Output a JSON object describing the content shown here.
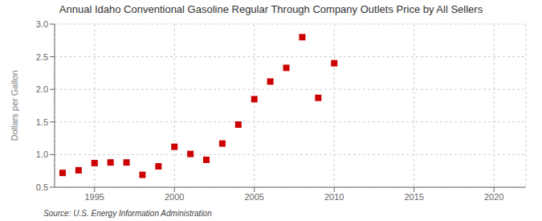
{
  "chart_data": {
    "type": "scatter",
    "title": "Annual Idaho Conventional Gasoline Regular Through Company Outlets Price by All Sellers",
    "ylabel": "Dollars per Gallon",
    "annotations": [
      "Source: U.S. Energy Information Administration"
    ],
    "x": [
      1993,
      1994,
      1995,
      1996,
      1997,
      1998,
      1999,
      2000,
      2001,
      2002,
      2003,
      2004,
      2005,
      2006,
      2007,
      2008,
      2009,
      2010
    ],
    "values": [
      0.72,
      0.76,
      0.87,
      0.88,
      0.88,
      0.69,
      0.82,
      1.12,
      1.01,
      0.92,
      1.17,
      1.46,
      1.85,
      2.12,
      2.33,
      2.8,
      1.87,
      2.4
    ],
    "color": "#cc0000",
    "marker": "square",
    "xlim": [
      1992.5,
      2022
    ],
    "xticks": [
      1995,
      2000,
      2005,
      2010,
      2015,
      2020
    ],
    "ylim": [
      0.5,
      3.0
    ],
    "yticks": [
      0.5,
      {
        "value": 1,
        "label": "1.0"
      },
      1.5,
      {
        "value": 2,
        "label": "2.0"
      },
      2.5,
      {
        "value": 3,
        "label": "3.0"
      }
    ],
    "grid": true
  }
}
